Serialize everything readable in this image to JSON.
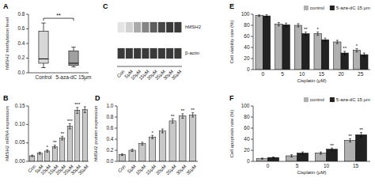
{
  "chart_data": [
    {
      "type": "box",
      "title": "A",
      "ylabel": "hMSH2 methylation level",
      "categories": [
        "Control",
        "5-aza-dC 15μm"
      ],
      "boxes": [
        {
          "median": 0.19,
          "q1": 0.13,
          "q3": 0.57,
          "whisker_low": 0.07,
          "whisker_high": 0.68
        },
        {
          "median": 0.13,
          "q1": 0.1,
          "q3": 0.3,
          "whisker_low": 0.08,
          "whisker_high": 0.35
        }
      ],
      "colors": [
        "#d8d8d8",
        "#a0a0a0"
      ],
      "annotations": [
        {
          "categories": [
            "Control",
            "5-aza-dC 15μm"
          ],
          "text": "**"
        }
      ],
      "ylim": [
        0.0,
        0.8
      ],
      "yticks": [
        {
          "value": 0,
          "label": "0.0"
        },
        0.2,
        0.4,
        0.6,
        0.8
      ],
      "grid": false
    },
    {
      "type": "bar",
      "title": "B",
      "ylabel": "hMSH2 mRNA expression",
      "categories": [
        "Con",
        "5μM",
        "10μM",
        "15μM",
        "20μM",
        "25μM",
        "30μM",
        "35μM"
      ],
      "values": [
        0.015,
        0.022,
        0.028,
        0.04,
        0.063,
        0.095,
        0.138,
        0.14
      ],
      "errors": [
        0.002,
        0.003,
        0.003,
        0.004,
        0.005,
        0.007,
        0.008,
        0.008
      ],
      "color": "#c8c8c8",
      "annotations": [
        {
          "category": "10μM",
          "text": "*"
        },
        {
          "category": "15μM",
          "text": "**"
        },
        {
          "category": "20μM",
          "text": "**"
        },
        {
          "category": "25μM",
          "text": "***"
        },
        {
          "category": "30μM",
          "text": "***"
        }
      ],
      "ylim": [
        0.0,
        0.15
      ],
      "yticks": [
        {
          "value": 0,
          "label": "0.00"
        },
        0.05,
        {
          "value": 0.1,
          "label": "0.10"
        },
        0.15
      ],
      "grid": false
    },
    {
      "type": "blot",
      "title": "C",
      "categories": [
        "Con",
        "5μM",
        "10μM",
        "15μM",
        "20μM",
        "25μM",
        "30μM",
        "35μM"
      ],
      "series": [
        {
          "name": "hMSH2",
          "values": [
            0.12,
            0.2,
            0.38,
            0.55,
            0.72,
            0.82,
            0.88,
            0.88
          ]
        },
        {
          "name": "β-actin",
          "values": [
            0.88,
            0.88,
            0.88,
            0.88,
            0.88,
            0.88,
            0.88,
            0.88
          ]
        }
      ]
    },
    {
      "type": "bar",
      "title": "D",
      "ylabel": "hMSH2 protein expression",
      "categories": [
        "Con",
        "5μM",
        "10μM",
        "15μM",
        "20μM",
        "25μM",
        "30μM",
        "35μM"
      ],
      "values": [
        0.12,
        0.2,
        0.32,
        0.44,
        0.55,
        0.73,
        0.82,
        0.84
      ],
      "errors": [
        0.015,
        0.02,
        0.025,
        0.03,
        0.035,
        0.04,
        0.04,
        0.04
      ],
      "color": "#c8c8c8",
      "annotations": [
        {
          "category": "15μM",
          "text": "*"
        },
        {
          "category": "25μM",
          "text": "**"
        },
        {
          "category": "30μM",
          "text": "**"
        },
        {
          "category": "35μM",
          "text": "**"
        }
      ],
      "ylim": [
        0.0,
        1.0
      ],
      "yticks": [
        {
          "value": 0,
          "label": "0.0"
        },
        0.2,
        0.4,
        0.6,
        0.8,
        {
          "value": 1,
          "label": "1.0"
        }
      ],
      "grid": false
    },
    {
      "type": "bar",
      "title": "E",
      "ylabel": "Cell viability rate (%)",
      "xlabel": "Cisplatin (μM)",
      "categories": [
        0,
        5,
        10,
        15,
        20,
        25
      ],
      "series": [
        {
          "name": "control",
          "color": "#b0b0b0",
          "values": [
            98,
            82,
            80,
            65,
            50,
            35
          ],
          "errors": [
            2,
            3,
            3,
            3,
            3,
            3
          ]
        },
        {
          "name": "5-aza-dC 15 μm",
          "color": "#222222",
          "values": [
            97,
            81,
            65,
            54,
            30,
            27
          ],
          "errors": [
            2,
            3,
            3,
            3,
            3,
            3
          ]
        }
      ],
      "annotations": [
        {
          "category": 10,
          "series": "5-aza-dC 15 μm",
          "text": "**"
        },
        {
          "category": 15,
          "series": "control",
          "text": "*"
        },
        {
          "category": 20,
          "series": "5-aza-dC 15 μm",
          "text": "**"
        },
        {
          "category": 25,
          "series": "control",
          "text": "*"
        }
      ],
      "ylim": [
        0,
        100
      ],
      "yticks": [
        0,
        20,
        40,
        60,
        80,
        100
      ],
      "legend": "upper right",
      "grid": false
    },
    {
      "type": "bar",
      "title": "F",
      "ylabel": "Cell apoptosis rate (%)",
      "xlabel": "Cisplatin (μM)",
      "categories": [
        0,
        5,
        10,
        15
      ],
      "series": [
        {
          "name": "control",
          "color": "#b0b0b0",
          "values": [
            5,
            10,
            15,
            38
          ],
          "errors": [
            1,
            2,
            2,
            3
          ]
        },
        {
          "name": "5-aza-dC 15 μm",
          "color": "#222222",
          "values": [
            7,
            15,
            22,
            48
          ],
          "errors": [
            1,
            2,
            2,
            4
          ]
        }
      ],
      "annotations": [
        {
          "category": 10,
          "series": "5-aza-dC 15 μm",
          "text": "**"
        },
        {
          "category": 15,
          "series": "5-aza-dC 15 μm",
          "text": "**"
        },
        {
          "category": 15,
          "series": "control",
          "text": "**"
        }
      ],
      "ylim": [
        0,
        100
      ],
      "yticks": [
        0,
        20,
        40,
        60,
        80,
        100
      ],
      "legend": "upper right",
      "grid": false
    }
  ]
}
